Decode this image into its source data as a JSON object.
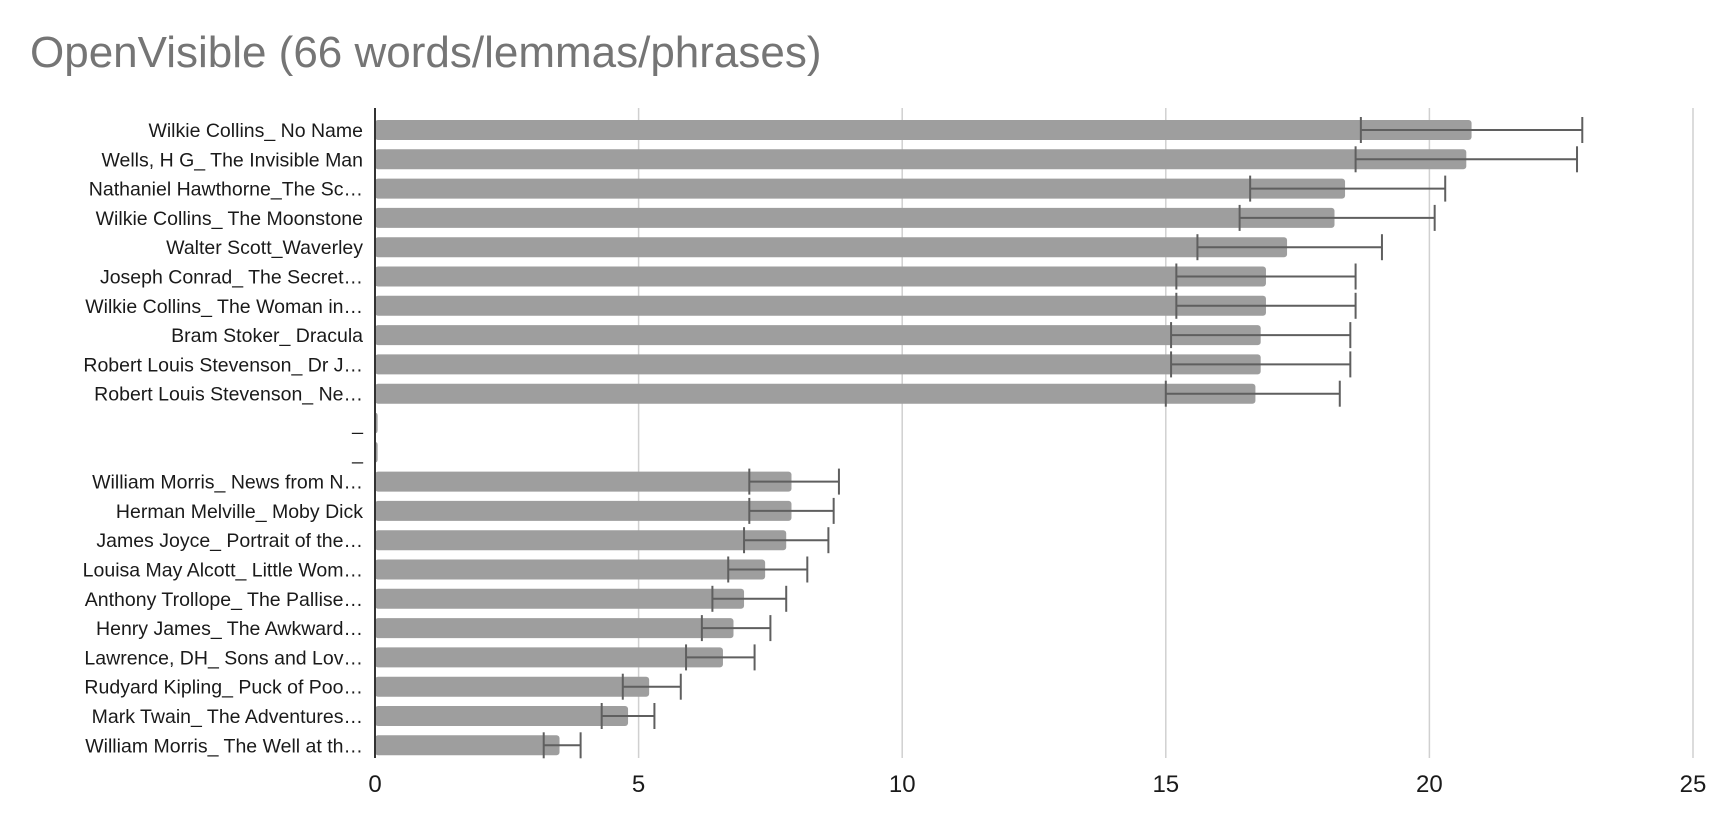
{
  "chart_data": {
    "type": "bar",
    "orientation": "horizontal",
    "title": "OpenVisible (66 words/lemmas/phrases)",
    "xlabel": "",
    "ylabel": "",
    "xlim": [
      0,
      25
    ],
    "x_ticks": [
      "0",
      "5",
      "10",
      "15",
      "20",
      "25"
    ],
    "grid": "vertical",
    "legend": "none",
    "colors": {
      "bar": "#9e9e9e",
      "error_bar": "#5f5f5f",
      "grid": "#d0d0d0",
      "axis": "#333333"
    },
    "categories": [
      "Wilkie Collins_ No Name",
      "Wells, H G_ The Invisible Man",
      "Nathaniel Hawthorne_The Sc…",
      "Wilkie Collins_ The Moonstone",
      "Walter Scott_Waverley",
      "Joseph Conrad_ The Secret…",
      "Wilkie Collins_ The Woman in…",
      "Bram Stoker_ Dracula",
      "Robert Louis Stevenson_ Dr J…",
      "Robert Louis Stevenson_ Ne…",
      "_",
      "_",
      "William Morris_ News from N…",
      "Herman Melville_ Moby Dick",
      "James Joyce_ Portrait of the…",
      "Louisa May Alcott_ Little Wom…",
      "Anthony Trollope_ The Pallise…",
      "Henry James_ The Awkward…",
      "Lawrence, DH_ Sons and Lov…",
      "Rudyard Kipling_ Puck of Poo…",
      "Mark Twain_ The Adventures…",
      "William Morris_ The Well at th…"
    ],
    "values": [
      20.8,
      20.7,
      18.4,
      18.2,
      17.3,
      16.9,
      16.9,
      16.8,
      16.8,
      16.7,
      0.05,
      0.05,
      7.9,
      7.9,
      7.8,
      7.4,
      7.0,
      6.8,
      6.6,
      5.2,
      4.8,
      3.5
    ],
    "error_low": [
      18.7,
      18.6,
      16.6,
      16.4,
      15.6,
      15.2,
      15.2,
      15.1,
      15.1,
      15.0,
      null,
      null,
      7.1,
      7.1,
      7.0,
      6.7,
      6.4,
      6.2,
      5.9,
      4.7,
      4.3,
      3.2
    ],
    "error_high": [
      22.9,
      22.8,
      20.3,
      20.1,
      19.1,
      18.6,
      18.6,
      18.5,
      18.5,
      18.3,
      null,
      null,
      8.8,
      8.7,
      8.6,
      8.2,
      7.8,
      7.5,
      7.2,
      5.8,
      5.3,
      3.9
    ]
  }
}
